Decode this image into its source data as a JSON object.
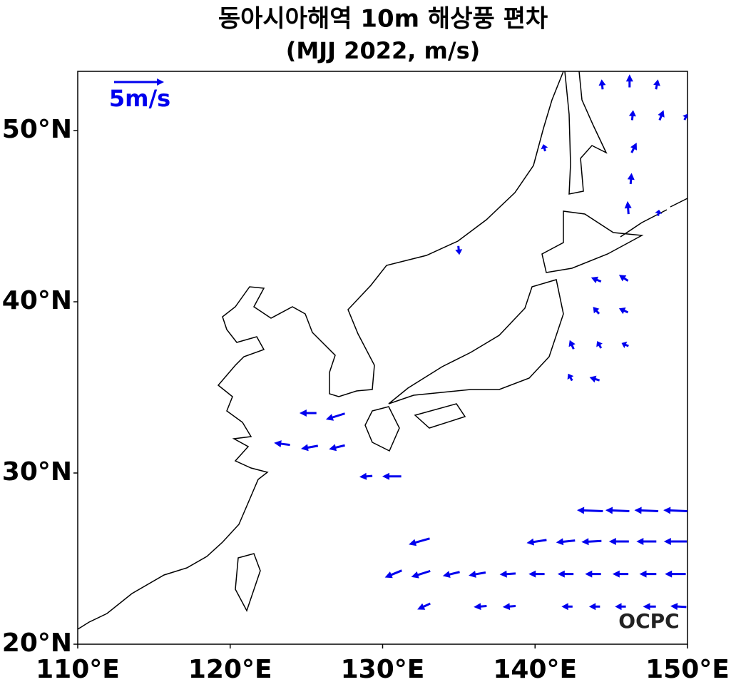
{
  "chart_data": {
    "type": "quiver",
    "title": "동아시아해역 10m 해상풍 편차",
    "subtitle": "(MJJ 2022, m/s)",
    "xlim": [
      110,
      150
    ],
    "ylim": [
      20,
      53.46
    ],
    "xticks": [
      {
        "value": 110,
        "label": "110°E"
      },
      {
        "value": 120,
        "label": "120°E"
      },
      {
        "value": 130,
        "label": "130°E"
      },
      {
        "value": 140,
        "label": "140°E"
      },
      {
        "value": 150,
        "label": "150°E"
      }
    ],
    "yticks": [
      {
        "value": 20,
        "label": "20°N"
      },
      {
        "value": 30,
        "label": "30°N"
      },
      {
        "value": 40,
        "label": "40°N"
      },
      {
        "value": 50,
        "label": "50°N"
      }
    ],
    "color": "#0000ee",
    "reference": {
      "value": 5,
      "label": "5m/s"
    },
    "logo": "OCPC",
    "lon": [
      144.4,
      146.2,
      148.0,
      146.4,
      148.3,
      149.9,
      140.6,
      146.5,
      146.3,
      146.1,
      148.1,
      135.0,
      144.0,
      145.8,
      144.0,
      145.8,
      142.4,
      144.2,
      145.9,
      142.3,
      143.9,
      125.1,
      126.9,
      123.4,
      125.2,
      127.0,
      128.9,
      130.6,
      143.6,
      145.4,
      147.3,
      149.2,
      132.4,
      140.1,
      142.0,
      143.7,
      145.5,
      147.3,
      149.2,
      130.7,
      132.5,
      134.5,
      136.2,
      138.2,
      140.1,
      142.0,
      143.8,
      145.6,
      147.4,
      149.2,
      132.7,
      136.4,
      138.3,
      142.1,
      143.9,
      145.6,
      147.5,
      149.4
    ],
    "lat": [
      52.7,
      52.9,
      52.7,
      50.9,
      50.9,
      50.8,
      49.0,
      49.0,
      47.2,
      45.5,
      45.2,
      43.0,
      41.3,
      41.4,
      39.5,
      39.5,
      37.5,
      37.5,
      37.5,
      35.6,
      35.5,
      33.5,
      33.3,
      31.7,
      31.5,
      31.5,
      29.8,
      29.8,
      27.8,
      27.8,
      27.8,
      27.8,
      26.0,
      26.0,
      26.0,
      26.0,
      26.0,
      26.0,
      26.0,
      24.1,
      24.1,
      24.1,
      24.1,
      24.1,
      24.1,
      24.1,
      24.1,
      24.1,
      24.1,
      24.1,
      22.2,
      22.2,
      22.2,
      22.2,
      22.2,
      22.2,
      22.2,
      22.2
    ],
    "u": [
      -0.1,
      0,
      0.2,
      0.1,
      0.4,
      0.3,
      -0.2,
      0.5,
      0.1,
      -0.1,
      0.1,
      0.1,
      -1.0,
      -0.9,
      -0.6,
      -0.9,
      -0.4,
      -0.4,
      -0.7,
      -0.4,
      -1.0,
      -1.7,
      -1.9,
      -1.6,
      -1.7,
      -1.6,
      -1.3,
      -1.9,
      -2.6,
      -2.4,
      -2.4,
      -2.4,
      -2.1,
      -2.0,
      -1.9,
      -2.0,
      -2.0,
      -2.0,
      -2.3,
      -1.7,
      -1.9,
      -1.7,
      -1.7,
      -1.6,
      -1.6,
      -1.6,
      -1.6,
      -1.6,
      -1.7,
      -2.1,
      -1.3,
      -1.3,
      -1.3,
      -1.1,
      -1.1,
      -1.1,
      -1.3,
      -1.6
    ],
    "v": [
      1.0,
      1.3,
      1.0,
      1.0,
      1.0,
      0.6,
      0.7,
      1.0,
      1.1,
      1.3,
      0.6,
      -0.9,
      0.4,
      0.6,
      0.7,
      0.4,
      0.9,
      0.7,
      0.3,
      0.7,
      0.3,
      0,
      -0.6,
      0.2,
      -0.3,
      -0.4,
      -0.1,
      0,
      0.1,
      0.1,
      0.1,
      0.1,
      -0.6,
      -0.3,
      -0.2,
      -0.1,
      0,
      0,
      0,
      -0.7,
      -0.6,
      -0.4,
      -0.3,
      -0.1,
      0,
      0,
      0,
      0,
      0,
      0,
      -0.6,
      -0.1,
      -0.1,
      0,
      0,
      0,
      0,
      0.1
    ]
  }
}
